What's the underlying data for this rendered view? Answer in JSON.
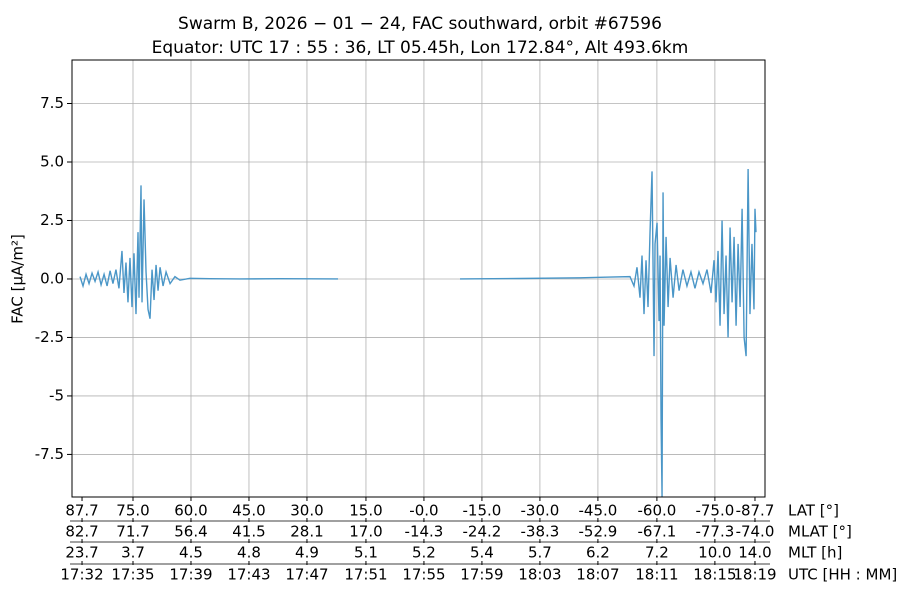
{
  "chart_data": {
    "type": "line",
    "title": "Swarm B,  2026 − 01 − 24,  FAC southward,  orbit #67596",
    "subtitle": "Equator:  UTC 17 : 55 : 36,  LT 05.45h,  Lon 172.84°,  Alt 493.6km",
    "ylabel": "FAC [μA/m²]",
    "xlabel": "UTC [HH : MM]",
    "xlim": [
      1051.3,
      1099.7
    ],
    "ylim": [
      -9.32,
      9.36
    ],
    "grid": true,
    "xticks": [
      {
        "value": 1052.0,
        "label": "17:32"
      },
      {
        "value": 1055.56,
        "label": "17:35"
      },
      {
        "value": 1059.61,
        "label": "17:39"
      },
      {
        "value": 1063.66,
        "label": "17:43"
      },
      {
        "value": 1067.71,
        "label": "17:47"
      },
      {
        "value": 1071.83,
        "label": "17:51"
      },
      {
        "value": 1075.88,
        "label": "17:55"
      },
      {
        "value": 1079.93,
        "label": "17:59"
      },
      {
        "value": 1083.98,
        "label": "18:03"
      },
      {
        "value": 1088.03,
        "label": "18:07"
      },
      {
        "value": 1092.15,
        "label": "18:11"
      },
      {
        "value": 1096.2,
        "label": "18:15"
      },
      {
        "value": 1099.0,
        "label": "18:19"
      }
    ],
    "extra_tick_rows": [
      {
        "name": "LAT [°]",
        "labels": [
          "87.7",
          "75.0",
          "60.0",
          "45.0",
          "30.0",
          "15.0",
          "-0.0",
          "-15.0",
          "-30.0",
          "-45.0",
          "-60.0",
          "-75.0",
          "-87.7"
        ]
      },
      {
        "name": "MLAT [°]",
        "labels": [
          "82.7",
          "71.7",
          "56.4",
          "41.5",
          "28.1",
          "17.0",
          "-14.3",
          "-24.2",
          "-38.3",
          "-52.9",
          "-67.1",
          "-77.3",
          "-74.0"
        ]
      },
      {
        "name": "MLT [h]",
        "labels": [
          "23.7",
          "3.7",
          "4.5",
          "4.8",
          "4.9",
          "5.1",
          "5.2",
          "5.4",
          "5.7",
          "6.2",
          "7.2",
          "10.0",
          "14.0"
        ]
      }
    ],
    "yticks": [
      -7.5,
      -5,
      -2.5,
      {
        "value": 0,
        "label": "0.0"
      },
      2.5,
      {
        "value": 5,
        "label": "5.0"
      },
      7.5
    ],
    "series": [
      {
        "color": "#4a96c7",
        "x": [
          1051.86,
          1052.07,
          1052.28,
          1052.49,
          1052.7,
          1052.91,
          1053.12,
          1053.33,
          1053.54,
          1053.75,
          1053.96,
          1054.16,
          1054.37,
          1054.58,
          1054.79,
          1054.93,
          1055.07,
          1055.21,
          1055.35,
          1055.49,
          1055.63,
          1055.77,
          1055.91,
          1055.98,
          1056.12,
          1056.19,
          1056.33,
          1056.47,
          1056.61,
          1056.75,
          1056.89,
          1057.03,
          1057.17,
          1057.31,
          1057.45,
          1057.66,
          1057.87,
          1058.15,
          1058.49,
          1058.84,
          1059.54,
          1060.94,
          1063.03,
          1065.83,
          1069.88,
          1075.0,
          1078.4,
          1082.59,
          1086.78,
          1088.87,
          1090.27,
          1090.55,
          1090.76,
          1090.97,
          1091.11,
          1091.25,
          1091.39,
          1091.53,
          1091.67,
          1091.81,
          1091.95,
          1092.02,
          1092.16,
          1092.3,
          1092.37,
          1092.44,
          1092.51,
          1092.58,
          1092.65,
          1092.79,
          1092.93,
          1093.07,
          1093.28,
          1093.49,
          1093.7,
          1093.97,
          1094.25,
          1094.53,
          1094.81,
          1095.09,
          1095.37,
          1095.65,
          1095.93,
          1096.14,
          1096.28,
          1096.42,
          1096.56,
          1096.7,
          1096.84,
          1096.98,
          1097.12,
          1097.26,
          1097.4,
          1097.54,
          1097.68,
          1097.82,
          1097.96,
          1098.1,
          1098.24,
          1098.38,
          1098.52,
          1098.65,
          1098.79,
          1098.93,
          1099.0,
          1099.07
        ],
        "values": [
          0.1,
          -0.3,
          0.2,
          -0.2,
          0.25,
          -0.1,
          0.3,
          -0.25,
          0.2,
          -0.3,
          0.35,
          -0.2,
          0.4,
          -0.4,
          1.2,
          -0.6,
          0.7,
          -1.0,
          0.9,
          -1.2,
          1.1,
          -1.5,
          2.0,
          -0.8,
          4.0,
          -1.0,
          3.4,
          0.3,
          -1.3,
          -1.7,
          0.4,
          -0.9,
          0.6,
          -0.5,
          0.5,
          -0.3,
          0.3,
          -0.2,
          0.1,
          -0.05,
          0.03,
          0.01,
          0.0,
          0.01,
          0.0,
          null,
          0.0,
          0.02,
          0.05,
          0.08,
          0.1,
          -0.3,
          0.5,
          -0.8,
          1.0,
          -1.5,
          0.8,
          -1.2,
          2.0,
          4.6,
          -3.3,
          1.5,
          2.4,
          -1.8,
          1.0,
          -6.0,
          -9.3,
          3.7,
          -2.0,
          1.8,
          -1.2,
          0.9,
          -0.8,
          0.6,
          -0.5,
          0.4,
          -0.3,
          0.3,
          -0.4,
          0.3,
          -0.2,
          0.4,
          -0.6,
          0.8,
          -1.0,
          1.2,
          -2.0,
          2.5,
          -1.5,
          1.0,
          -2.5,
          2.2,
          -1.0,
          1.8,
          -2.0,
          1.5,
          -1.2,
          3.0,
          -2.5,
          -3.3,
          4.7,
          -1.5,
          1.5,
          -1.3,
          3.0,
          2.0
        ]
      }
    ]
  }
}
